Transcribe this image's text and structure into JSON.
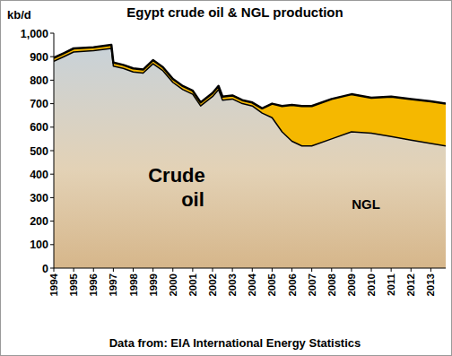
{
  "chart_data": {
    "type": "area",
    "stacked": true,
    "title": "Egypt crude oil & NGL production",
    "ylabel": "kb/d",
    "note": "Data from: EIA International Energy Statistics",
    "x": [
      1994,
      1994.5,
      1995,
      1996,
      1996.9,
      1997,
      1997.5,
      1998,
      1998.5,
      1999,
      1999.5,
      2000,
      2000.5,
      2001,
      2001.4,
      2002,
      2002.3,
      2002.5,
      2003,
      2003.5,
      2004,
      2004.5,
      2005,
      2005.5,
      2006,
      2006.5,
      2007,
      2008,
      2009,
      2010,
      2011,
      2012,
      2013,
      2013.75
    ],
    "series": [
      {
        "name": "Crude oil",
        "color": "#d6b68a",
        "values": [
          880,
          900,
          920,
          925,
          935,
          860,
          850,
          835,
          830,
          870,
          840,
          790,
          760,
          740,
          690,
          730,
          760,
          715,
          720,
          700,
          690,
          660,
          640,
          580,
          540,
          520,
          520,
          550,
          580,
          575,
          560,
          545,
          530,
          520
        ]
      },
      {
        "name": "NGL",
        "color": "#f5b800",
        "values": [
          15,
          15,
          15,
          15,
          15,
          15,
          15,
          15,
          15,
          15,
          15,
          15,
          15,
          15,
          15,
          15,
          15,
          15,
          15,
          15,
          15,
          20,
          60,
          110,
          155,
          170,
          170,
          170,
          160,
          150,
          170,
          175,
          180,
          180
        ]
      }
    ],
    "xlim": [
      1994,
      2013.75
    ],
    "xticks": [
      1994,
      1995,
      1996,
      1997,
      1998,
      1999,
      2000,
      2001,
      2002,
      2003,
      2004,
      2005,
      2006,
      2007,
      2008,
      2009,
      2010,
      2011,
      2012,
      2013
    ],
    "ylim": [
      0,
      1000
    ],
    "yticks": [
      0,
      100,
      200,
      300,
      400,
      500,
      600,
      700,
      800,
      900,
      {
        "value": 1000,
        "label": "1,000"
      }
    ],
    "grid": false
  }
}
